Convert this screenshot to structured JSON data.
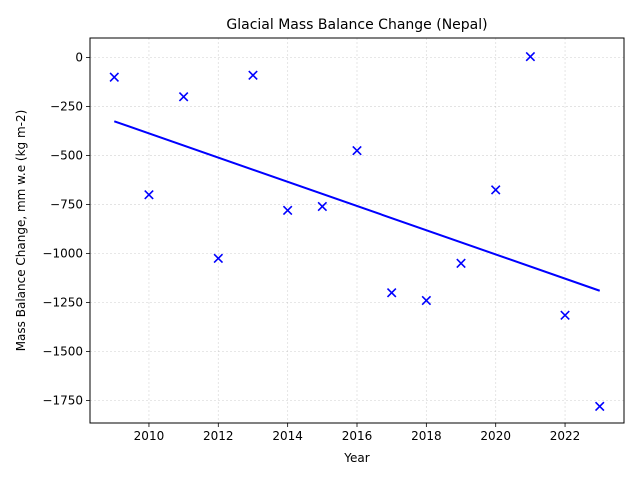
{
  "chart_data": {
    "type": "scatter",
    "title": "Glacial Mass Balance Change (Nepal)",
    "xlabel": "Year",
    "ylabel": "Mass Balance Change, mm w.e (kg m-2)",
    "xlim": [
      2008.3,
      2023.7
    ],
    "ylim": [
      -1865,
      100
    ],
    "x_ticks": [
      2010,
      2012,
      2014,
      2016,
      2018,
      2020,
      2022
    ],
    "y_ticks": [
      0,
      -250,
      -500,
      -750,
      -1000,
      -1250,
      -1500,
      -1750
    ],
    "grid": true,
    "marker": "x",
    "marker_color": "#0000ff",
    "line_color": "#0000ff",
    "points": [
      {
        "x": 2009,
        "y": -100
      },
      {
        "x": 2010,
        "y": -700
      },
      {
        "x": 2011,
        "y": -200
      },
      {
        "x": 2012,
        "y": -1025
      },
      {
        "x": 2013,
        "y": -90
      },
      {
        "x": 2014,
        "y": -780
      },
      {
        "x": 2015,
        "y": -760
      },
      {
        "x": 2016,
        "y": -475
      },
      {
        "x": 2017,
        "y": -1200
      },
      {
        "x": 2018,
        "y": -1240
      },
      {
        "x": 2019,
        "y": -1050
      },
      {
        "x": 2020,
        "y": -675
      },
      {
        "x": 2021,
        "y": 5
      },
      {
        "x": 2022,
        "y": -1315
      },
      {
        "x": 2023,
        "y": -1780
      }
    ],
    "trend_line": {
      "x": [
        2009,
        2023
      ],
      "y": [
        -325,
        -1190
      ]
    }
  }
}
